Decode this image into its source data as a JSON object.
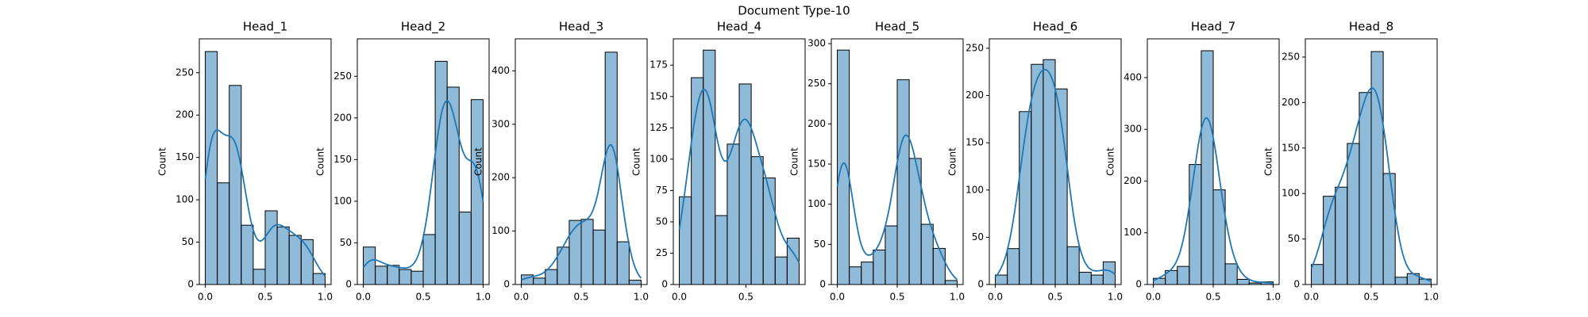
{
  "title": "Document Type-10",
  "chart_data": [
    {
      "type": "histogram",
      "title": "Head_1",
      "ylabel": "Count",
      "color": "#1f77b4",
      "bins": [
        0.0,
        0.1,
        0.2,
        0.3,
        0.4,
        0.5,
        0.6,
        0.7,
        0.8,
        0.9,
        1.0
      ],
      "values": [
        275,
        120,
        235,
        70,
        18,
        87,
        68,
        58,
        53,
        13
      ],
      "xlim": [
        -0.05,
        1.05
      ],
      "xticks": [
        {
          "value": 0,
          "label": "0.0"
        },
        0.5,
        {
          "value": 1,
          "label": "1.0"
        }
      ],
      "ylim": [
        0,
        290
      ],
      "yticks": [
        0,
        50,
        100,
        150,
        200,
        250
      ]
    },
    {
      "type": "histogram",
      "title": "Head_2",
      "ylabel": "Count",
      "color": "#1f77b4",
      "bins": [
        0.0,
        0.1,
        0.2,
        0.3,
        0.4,
        0.5,
        0.6,
        0.7,
        0.8,
        0.9,
        1.0
      ],
      "values": [
        45,
        22,
        23,
        18,
        16,
        60,
        268,
        237,
        87,
        222
      ],
      "xlim": [
        -0.05,
        1.05
      ],
      "xticks": [
        {
          "value": 0,
          "label": "0.0"
        },
        0.5,
        {
          "value": 1,
          "label": "1.0"
        }
      ],
      "ylim": [
        0,
        295
      ],
      "yticks": [
        0,
        50,
        100,
        150,
        200,
        250
      ]
    },
    {
      "type": "histogram",
      "title": "Head_3",
      "ylabel": "Count",
      "color": "#1f77b4",
      "bins": [
        0.0,
        0.1,
        0.2,
        0.3,
        0.4,
        0.5,
        0.6,
        0.7,
        0.8,
        0.9,
        1.0
      ],
      "values": [
        18,
        12,
        28,
        70,
        120,
        122,
        102,
        435,
        80,
        8
      ],
      "xlim": [
        -0.05,
        1.05
      ],
      "xticks": [
        {
          "value": 0,
          "label": "0.0"
        },
        0.5,
        {
          "value": 1,
          "label": "1.0"
        }
      ],
      "ylim": [
        0,
        460
      ],
      "yticks": [
        0,
        100,
        200,
        300,
        400
      ]
    },
    {
      "type": "histogram",
      "title": "Head_4",
      "ylabel": "Count",
      "color": "#1f77b4",
      "bins": [
        0.0,
        0.09,
        0.18,
        0.27,
        0.36,
        0.45,
        0.54,
        0.63,
        0.72,
        0.81,
        0.9
      ],
      "values": [
        70,
        165,
        187,
        55,
        112,
        160,
        102,
        85,
        22,
        37
      ],
      "xlim": [
        -0.045,
        0.945
      ],
      "xticks": [
        {
          "value": 0,
          "label": "0.0"
        },
        0.5
      ],
      "ylim": [
        0,
        196
      ],
      "yticks": [
        0,
        25,
        50,
        75,
        100,
        125,
        150,
        175
      ]
    },
    {
      "type": "histogram",
      "title": "Head_5",
      "ylabel": "Count",
      "color": "#1f77b4",
      "bins": [
        0.0,
        0.1,
        0.2,
        0.3,
        0.4,
        0.5,
        0.6,
        0.7,
        0.8,
        0.9,
        1.0
      ],
      "values": [
        292,
        22,
        28,
        43,
        73,
        255,
        157,
        75,
        45,
        5
      ],
      "xlim": [
        -0.05,
        1.05
      ],
      "xticks": [
        {
          "value": 0,
          "label": "0.0"
        },
        0.5,
        {
          "value": 1,
          "label": "1.0"
        }
      ],
      "ylim": [
        0,
        306
      ],
      "yticks": [
        0,
        50,
        100,
        150,
        200,
        250,
        300
      ]
    },
    {
      "type": "histogram",
      "title": "Head_6",
      "ylabel": "Count",
      "color": "#1f77b4",
      "bins": [
        0.0,
        0.1,
        0.2,
        0.3,
        0.4,
        0.5,
        0.6,
        0.7,
        0.8,
        0.9,
        1.0
      ],
      "values": [
        10,
        38,
        183,
        233,
        238,
        207,
        40,
        13,
        10,
        24
      ],
      "xlim": [
        -0.05,
        1.05
      ],
      "xticks": [
        {
          "value": 0,
          "label": "0.0"
        },
        0.5,
        {
          "value": 1,
          "label": "1.0"
        }
      ],
      "ylim": [
        0,
        260
      ],
      "yticks": [
        0,
        50,
        100,
        150,
        200,
        250
      ]
    },
    {
      "type": "histogram",
      "title": "Head_7",
      "ylabel": "Count",
      "color": "#1f77b4",
      "bins": [
        0.0,
        0.1,
        0.2,
        0.3,
        0.4,
        0.5,
        0.6,
        0.7,
        0.8,
        0.9,
        1.0
      ],
      "values": [
        12,
        27,
        35,
        232,
        452,
        183,
        40,
        10,
        3,
        5
      ],
      "xlim": [
        -0.05,
        1.05
      ],
      "xticks": [
        {
          "value": 0,
          "label": "0.0"
        },
        0.5,
        {
          "value": 1,
          "label": "1.0"
        }
      ],
      "ylim": [
        0,
        475
      ],
      "yticks": [
        0,
        100,
        200,
        300,
        400
      ]
    },
    {
      "type": "histogram",
      "title": "Head_8",
      "ylabel": "Count",
      "color": "#1f77b4",
      "bins": [
        0.0,
        0.1,
        0.2,
        0.3,
        0.4,
        0.5,
        0.6,
        0.7,
        0.8,
        0.9,
        1.0
      ],
      "values": [
        22,
        97,
        107,
        155,
        211,
        256,
        122,
        8,
        12,
        6
      ],
      "xlim": [
        -0.05,
        1.05
      ],
      "xticks": [
        {
          "value": 0,
          "label": "0.0"
        },
        0.5,
        {
          "value": 1,
          "label": "1.0"
        }
      ],
      "ylim": [
        0,
        270
      ],
      "yticks": [
        0,
        50,
        100,
        150,
        200,
        250
      ]
    }
  ]
}
